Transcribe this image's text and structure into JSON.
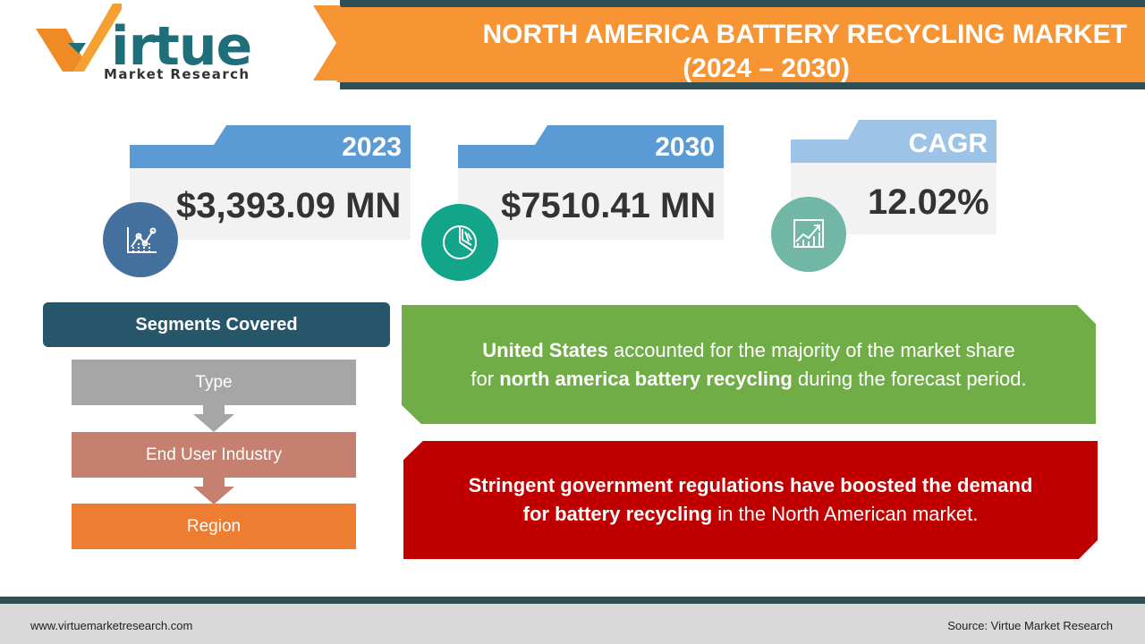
{
  "brand": {
    "logo_word": "irtue",
    "logo_subtitle": "Market Research",
    "colors": {
      "orange": "#f79433",
      "teal_dark": "#2f4f55",
      "logo_teal": "#1f6f7a"
    }
  },
  "header": {
    "title": "NORTH AMERICA BATTERY RECYCLING MARKET",
    "subtitle": "(2024 – 2030)"
  },
  "stats": [
    {
      "label": "2023",
      "value": "$3,393.09 MN",
      "icon": "line-chart-icon",
      "color": "#5b9bd5",
      "circle_color": "#44709d"
    },
    {
      "label": "2030",
      "value": "$7510.41 MN",
      "icon": "pie-chart-icon",
      "color": "#5b9bd5",
      "circle_color": "#12a58a"
    },
    {
      "label": "CAGR",
      "value": "12.02%",
      "icon": "growth-chart-icon",
      "color": "#9dc3e6",
      "circle_color": "#72b6a6"
    }
  ],
  "segments": {
    "heading": "Segments Covered",
    "items": [
      {
        "label": "Type",
        "color": "#a6a6a6"
      },
      {
        "label": "End User Industry",
        "color": "#c6806f"
      },
      {
        "label": "Region",
        "color": "#ed7d31"
      }
    ]
  },
  "insights": {
    "green": {
      "part1_bold": "United States",
      "part2": " accounted for the majority of the market share",
      "part3": "for ",
      "part4_bold": "north america battery recycling",
      "part5": " during the forecast period."
    },
    "red": {
      "part1_bold": "Stringent government regulations have boosted the demand",
      "part2_bold": "for battery recycling",
      "part3": " in the North American market."
    }
  },
  "footer": {
    "website": "www.virtuemarketresearch.com",
    "source": "Source: Virtue Market Research"
  }
}
